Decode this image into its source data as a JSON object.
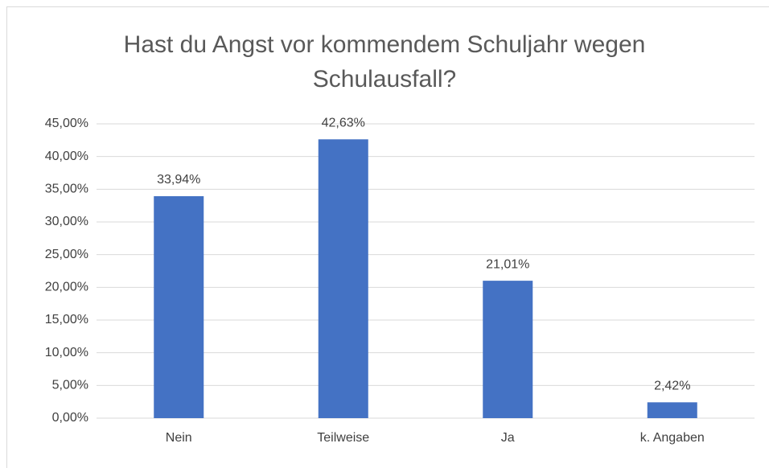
{
  "chart_data": {
    "type": "bar",
    "title": "Hast du Angst vor kommendem Schuljahr wegen Schulausfall?",
    "categories": [
      "Nein",
      "Teilweise",
      "Ja",
      "k. Angaben"
    ],
    "values": [
      33.94,
      42.63,
      21.01,
      2.42
    ],
    "value_labels": [
      "33,94%",
      "42,63%",
      "21,01%",
      "2,42%"
    ],
    "color": "#4472c4",
    "ylim": [
      0,
      45
    ],
    "yticks": [
      {
        "value": 0,
        "label": "0,00%"
      },
      {
        "value": 5,
        "label": "5,00%"
      },
      {
        "value": 10,
        "label": "10,00%"
      },
      {
        "value": 15,
        "label": "15,00%"
      },
      {
        "value": 20,
        "label": "20,00%"
      },
      {
        "value": 25,
        "label": "25,00%"
      },
      {
        "value": 30,
        "label": "30,00%"
      },
      {
        "value": 35,
        "label": "35,00%"
      },
      {
        "value": 40,
        "label": "40,00%"
      },
      {
        "value": 45,
        "label": "45,00%"
      }
    ],
    "grid": true
  }
}
